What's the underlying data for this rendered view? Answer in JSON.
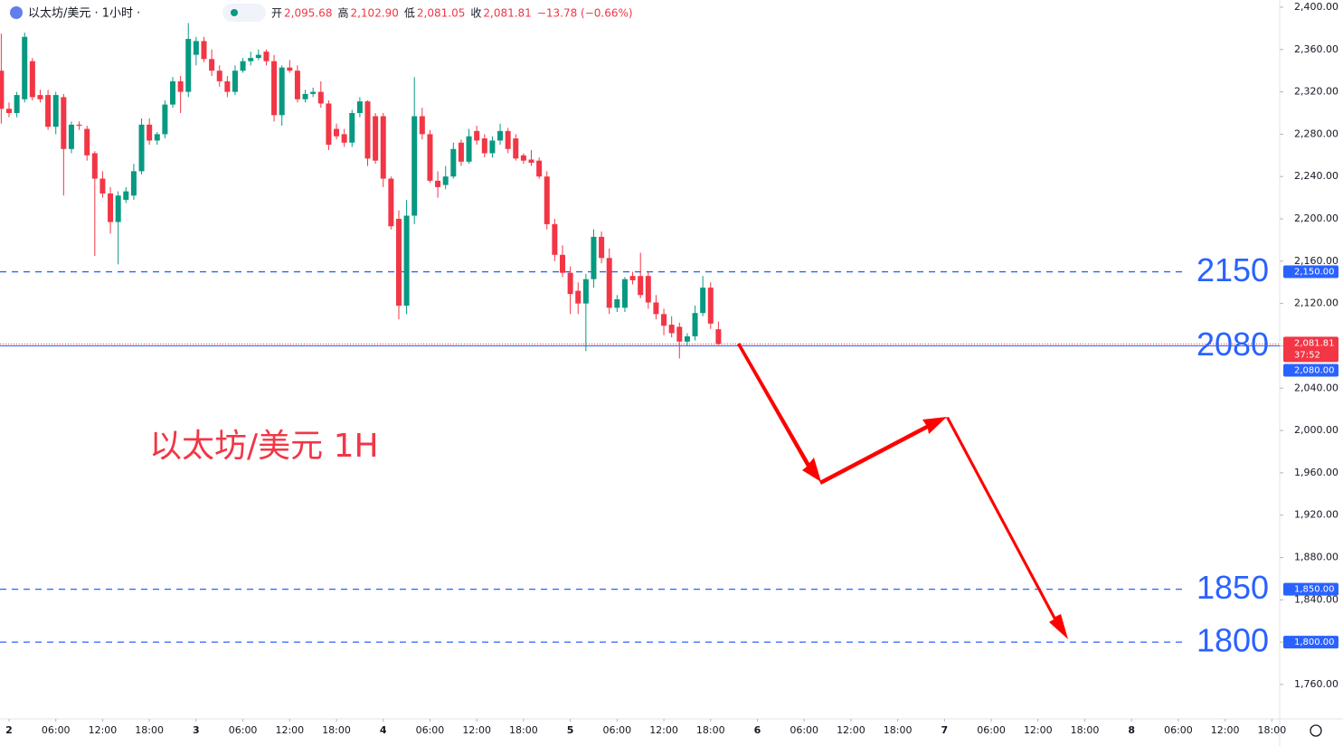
{
  "chart_data": {
    "type": "candlestick",
    "title": "以太坊/美元 · 1小时 ·",
    "ohlc_labels": [
      {
        "key": "开",
        "value": "2,095.68"
      },
      {
        "key": "高",
        "value": "2,102.90"
      },
      {
        "key": "低",
        "value": "2,081.05"
      },
      {
        "key": "收",
        "value": "2,081.81"
      }
    ],
    "change_label": "−13.78 (−0.66%)",
    "annotation": "以太坊/美元 1H",
    "up_color": "#089981",
    "down_color": "#f23645",
    "level_color": "#2962ff",
    "x": [
      -1,
      0,
      1,
      2,
      3,
      4,
      5,
      6,
      7,
      8,
      9,
      10,
      11,
      12,
      13,
      14,
      15,
      16,
      17,
      18,
      19,
      20,
      21,
      22,
      23,
      24,
      25,
      26,
      27,
      28,
      29,
      30,
      31,
      32,
      33,
      34,
      35,
      36,
      37,
      38,
      39,
      40,
      41,
      42,
      43,
      44,
      45,
      46,
      47,
      48,
      49,
      50,
      51,
      52,
      53,
      54,
      55,
      56,
      57,
      58,
      59,
      60,
      61,
      62,
      63,
      64,
      65,
      66,
      67,
      68,
      69,
      70,
      71,
      72,
      73,
      74,
      75,
      76,
      77,
      78,
      79,
      80,
      81,
      82,
      83,
      84,
      85,
      86,
      87,
      88,
      89,
      90,
      91
    ],
    "open": [
      2340,
      2304,
      2300,
      2313,
      2349,
      2317,
      2317,
      2287,
      2315,
      2266,
      2289,
      2285,
      2262,
      2238,
      2224,
      2197,
      2218,
      2222,
      2245,
      2289,
      2274,
      2280,
      2308,
      2330,
      2320,
      2355,
      2368,
      2351,
      2340,
      2330,
      2320,
      2340,
      2349,
      2352,
      2358,
      2349,
      2298,
      2343,
      2340,
      2313,
      2318,
      2320,
      2309,
      2285,
      2280,
      2272,
      2300,
      2311,
      2297,
      2297,
      2238,
      2200,
      2118,
      2203,
      2297,
      2280,
      2236,
      2232,
      2240,
      2272,
      2254,
      2283,
      2276,
      2262,
      2274,
      2283,
      2276,
      2260,
      2256,
      2255,
      2240,
      2195,
      2166,
      2149,
      2132,
      2120,
      2143,
      2183,
      2163,
      2116,
      2116,
      2146,
      2146,
      2146,
      2121,
      2110,
      2100,
      2098,
      2084,
      2089,
      2111,
      2135,
      2095.68
    ],
    "high": [
      2375,
      2310,
      2320,
      2376,
      2352,
      2322,
      2322,
      2320,
      2318,
      2292,
      2292,
      2288,
      2264,
      2245,
      2230,
      2226,
      2230,
      2252,
      2295,
      2295,
      2282,
      2312,
      2334,
      2335,
      2385,
      2372,
      2372,
      2360,
      2345,
      2335,
      2345,
      2352,
      2358,
      2360,
      2360,
      2355,
      2345,
      2350,
      2345,
      2322,
      2324,
      2330,
      2312,
      2290,
      2285,
      2303,
      2315,
      2312,
      2300,
      2300,
      2240,
      2208,
      2218,
      2334,
      2305,
      2284,
      2245,
      2250,
      2272,
      2275,
      2285,
      2288,
      2280,
      2278,
      2290,
      2286,
      2280,
      2262,
      2265,
      2258,
      2245,
      2200,
      2175,
      2155,
      2140,
      2148,
      2190,
      2188,
      2172,
      2128,
      2145,
      2150,
      2168,
      2150,
      2128,
      2115,
      2108,
      2102,
      2092,
      2118,
      2146,
      2140,
      2102.9
    ],
    "low": [
      2290,
      2296,
      2296,
      2310,
      2312,
      2310,
      2284,
      2280,
      2222,
      2262,
      2284,
      2255,
      2165,
      2220,
      2186,
      2157,
      2215,
      2218,
      2242,
      2270,
      2270,
      2276,
      2305,
      2300,
      2315,
      2345,
      2348,
      2335,
      2325,
      2315,
      2317,
      2338,
      2345,
      2350,
      2345,
      2292,
      2288,
      2338,
      2310,
      2310,
      2315,
      2305,
      2265,
      2275,
      2268,
      2268,
      2296,
      2250,
      2252,
      2230,
      2190,
      2105,
      2110,
      2195,
      2275,
      2234,
      2220,
      2228,
      2238,
      2250,
      2252,
      2270,
      2258,
      2258,
      2270,
      2262,
      2255,
      2252,
      2250,
      2238,
      2190,
      2160,
      2145,
      2110,
      2110,
      2075,
      2135,
      2158,
      2110,
      2112,
      2112,
      2138,
      2125,
      2115,
      2105,
      2090,
      2088,
      2068,
      2080,
      2085,
      2108,
      2096,
      2081.05
    ],
    "close": [
      2304,
      2300,
      2317,
      2372,
      2315,
      2313,
      2287,
      2317,
      2266,
      2289,
      2288,
      2260,
      2238,
      2224,
      2197,
      2222,
      2226,
      2245,
      2289,
      2274,
      2280,
      2308,
      2330,
      2320,
      2370,
      2368,
      2351,
      2340,
      2330,
      2320,
      2340,
      2349,
      2352,
      2355,
      2349,
      2298,
      2343,
      2340,
      2313,
      2318,
      2320,
      2309,
      2270,
      2278,
      2272,
      2300,
      2311,
      2257,
      2255,
      2238,
      2193,
      2118,
      2203,
      2297,
      2280,
      2236,
      2230,
      2240,
      2266,
      2254,
      2278,
      2274,
      2262,
      2274,
      2283,
      2266,
      2257,
      2255,
      2253,
      2240,
      2195,
      2166,
      2149,
      2129,
      2120,
      2143,
      2183,
      2163,
      2116,
      2124,
      2143,
      2142,
      2128,
      2121,
      2110,
      2099,
      2092,
      2084,
      2089,
      2111,
      2135,
      2101,
      2081.81
    ],
    "xlim": [
      -1.16,
      163
    ],
    "xticks": [
      {
        "value": 0,
        "label": "2"
      },
      {
        "value": 6,
        "label": "06:00"
      },
      {
        "value": 12,
        "label": "12:00"
      },
      {
        "value": 18,
        "label": "18:00"
      },
      {
        "value": 24,
        "label": "3"
      },
      {
        "value": 30,
        "label": "06:00"
      },
      {
        "value": 36,
        "label": "12:00"
      },
      {
        "value": 42,
        "label": "18:00"
      },
      {
        "value": 48,
        "label": "4"
      },
      {
        "value": 54,
        "label": "06:00"
      },
      {
        "value": 60,
        "label": "12:00"
      },
      {
        "value": 66,
        "label": "18:00"
      },
      {
        "value": 72,
        "label": "5"
      },
      {
        "value": 78,
        "label": "06:00"
      },
      {
        "value": 84,
        "label": "12:00"
      },
      {
        "value": 90,
        "label": "18:00"
      },
      {
        "value": 96,
        "label": "6"
      },
      {
        "value": 102,
        "label": "06:00"
      },
      {
        "value": 108,
        "label": "12:00"
      },
      {
        "value": 114,
        "label": "18:00"
      },
      {
        "value": 120,
        "label": "7"
      },
      {
        "value": 126,
        "label": "06:00"
      },
      {
        "value": 132,
        "label": "12:00"
      },
      {
        "value": 138,
        "label": "18:00"
      },
      {
        "value": 144,
        "label": "8"
      },
      {
        "value": 150,
        "label": "06:00"
      },
      {
        "value": 156,
        "label": "12:00"
      },
      {
        "value": 162,
        "label": "18:00"
      }
    ],
    "ylim": [
      1727.5,
      2406.8
    ],
    "yticks": [
      {
        "value": 1760,
        "label": "1,760.00"
      },
      {
        "value": 1800,
        "label": "1,800.00"
      },
      {
        "value": 1840,
        "label": "1,840.00"
      },
      {
        "value": 1880,
        "label": "1,880.00"
      },
      {
        "value": 1920,
        "label": "1,920.00"
      },
      {
        "value": 1960,
        "label": "1,960.00"
      },
      {
        "value": 2000,
        "label": "2,000.00"
      },
      {
        "value": 2040,
        "label": "2,040.00"
      },
      {
        "value": 2080,
        "label": "2,080.00"
      },
      {
        "value": 2120,
        "label": "2,120.00"
      },
      {
        "value": 2160,
        "label": "2,160.00"
      },
      {
        "value": 2200,
        "label": "2,200.00"
      },
      {
        "value": 2240,
        "label": "2,240.00"
      },
      {
        "value": 2280,
        "label": "2,280.00"
      },
      {
        "value": 2320,
        "label": "2,320.00"
      },
      {
        "value": 2360,
        "label": "2,360.00"
      },
      {
        "value": 2400,
        "label": "2,400.00"
      }
    ],
    "levels": [
      {
        "value": 2150,
        "label": "2150",
        "tag": "2,150.00"
      },
      {
        "value": 2080,
        "label": "2080",
        "tag": "2,080.00"
      },
      {
        "value": 1850,
        "label": "1850",
        "tag": "1,850.00"
      },
      {
        "value": 1800,
        "label": "1800",
        "tag": "1,800.00"
      }
    ],
    "last_price": {
      "value": 2081.81,
      "label": "2,081.81",
      "countdown": "37:52"
    }
  }
}
